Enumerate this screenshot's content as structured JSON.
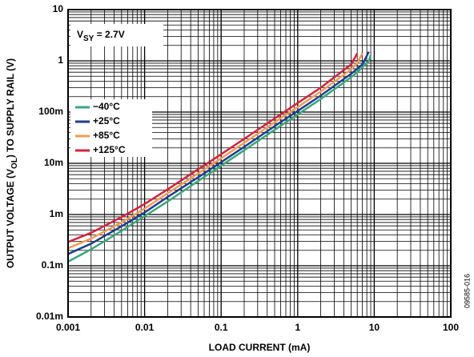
{
  "chart_data": {
    "type": "line",
    "xlabel": "LOAD CURRENT (mA)",
    "ylabel_parts": [
      "OUTPUT VOLTAGE (V",
      "OL",
      ") TO SUPPLY RAIL (V)"
    ],
    "annotation_parts": [
      "V",
      "SY",
      " = 2.7V"
    ],
    "side_note": "09585-016",
    "x_log": true,
    "y_log": true,
    "grid": true,
    "minor_grid": true,
    "legend_position": "upper-left",
    "xlim": [
      0.001,
      100
    ],
    "ylim": [
      1e-05,
      10
    ],
    "xticks": [
      0.001,
      0.01,
      0.1,
      1,
      10,
      100
    ],
    "yticks": [
      {
        "value": 1e-05,
        "label": "0.01m"
      },
      {
        "value": 0.0001,
        "label": "0.1m"
      },
      {
        "value": 0.001,
        "label": "1m"
      },
      {
        "value": 0.01,
        "label": "10m"
      },
      {
        "value": 0.1,
        "label": "100m"
      },
      1,
      10
    ],
    "x": [
      0.001,
      0.002,
      0.005,
      0.01,
      0.02,
      0.05,
      0.1,
      0.2,
      0.5,
      1,
      2,
      5,
      6,
      7,
      8.5,
      9
    ],
    "series": [
      {
        "name": "−40°C",
        "color": "#3aa679",
        "values": [
          0.00012,
          0.00021,
          0.00048,
          0.00093,
          0.0018,
          0.0045,
          0.009,
          0.018,
          0.045,
          0.09,
          0.18,
          0.48,
          0.6,
          0.75,
          1.0,
          1.3
        ]
      },
      {
        "name": "+25°C",
        "color": "#1f3c8f",
        "values": [
          0.00017,
          0.00027,
          0.00059,
          0.0011,
          0.0022,
          0.0053,
          0.0105,
          0.021,
          0.053,
          0.105,
          0.21,
          0.56,
          0.7,
          0.85,
          1.5,
          null
        ]
      },
      {
        "name": "+85°C",
        "color": "#f39c53",
        "values": [
          0.00022,
          0.00034,
          0.0007,
          0.0013,
          0.0026,
          0.0063,
          0.0125,
          0.025,
          0.063,
          0.125,
          0.25,
          0.68,
          0.9,
          1.4,
          null,
          null
        ]
      },
      {
        "name": "+125°C",
        "color": "#d4213d",
        "values": [
          0.00029,
          0.00044,
          0.00089,
          0.0016,
          0.0031,
          0.0076,
          0.015,
          0.03,
          0.075,
          0.15,
          0.3,
          0.85,
          1.4,
          null,
          null,
          null
        ]
      }
    ]
  }
}
